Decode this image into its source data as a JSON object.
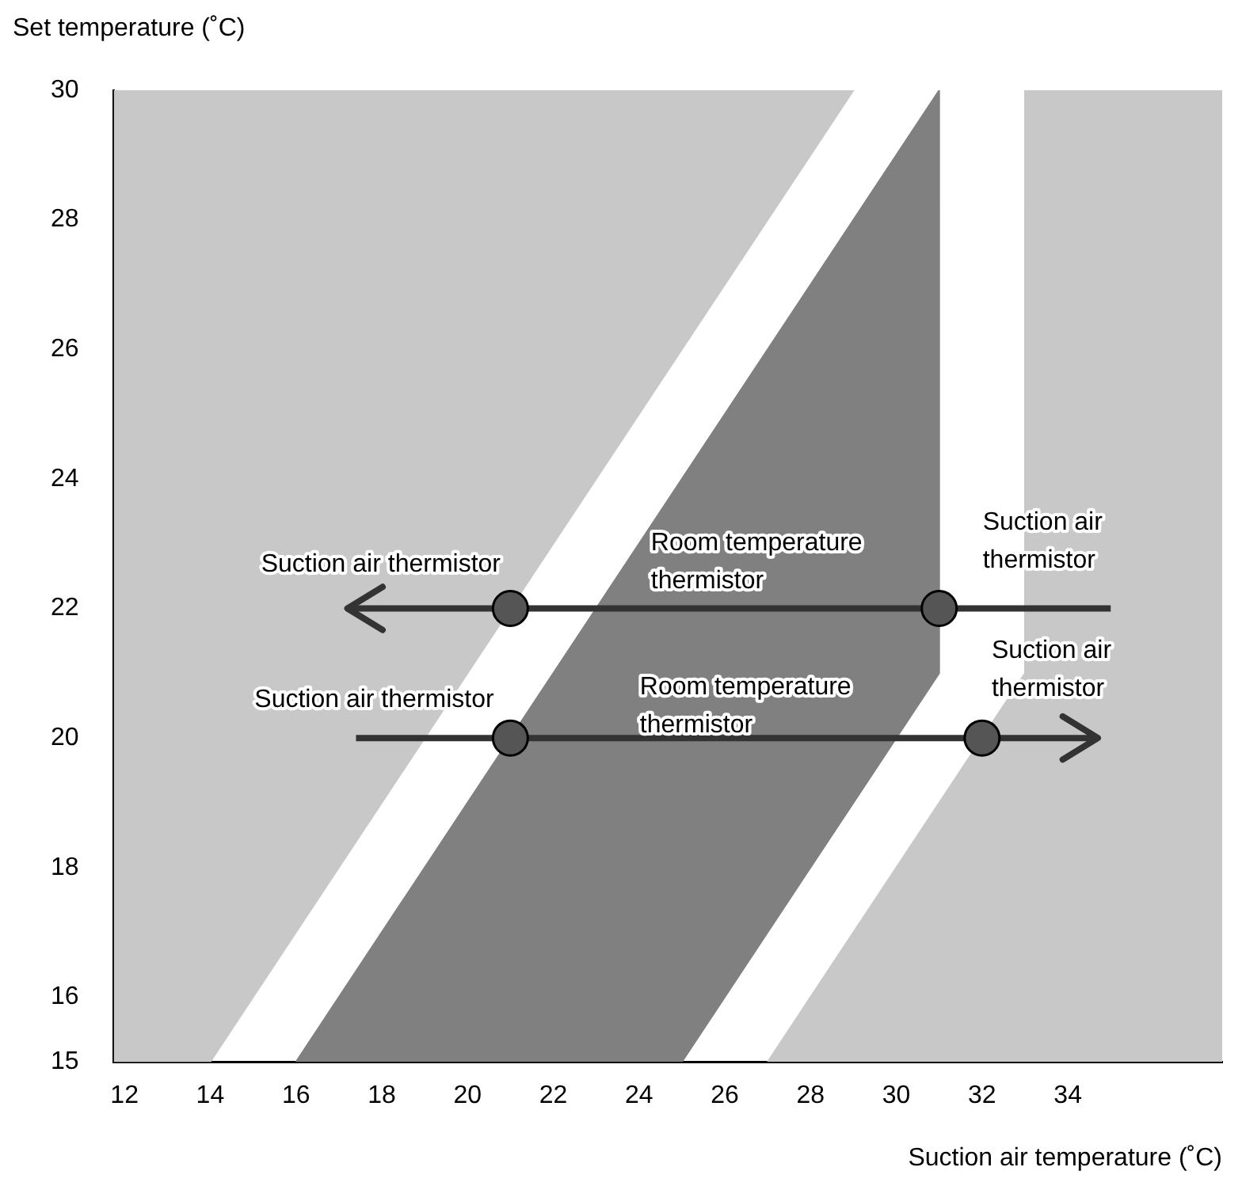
{
  "chart_data": {
    "type": "area",
    "xlabel": "Suction air temperature (˚C)",
    "ylabel": "Set temperature (˚C)",
    "xlim": [
      11.75,
      37.6
    ],
    "ylim": [
      15,
      30
    ],
    "xticks": [
      12,
      14,
      16,
      18,
      20,
      22,
      24,
      26,
      28,
      30,
      32,
      34
    ],
    "yticks": [
      15,
      16,
      18,
      20,
      22,
      24,
      26,
      28,
      30
    ],
    "grid": false,
    "legend": false,
    "series": [
      {
        "type": "area",
        "color": "#c8c8c8",
        "x": [
          11.75,
          14,
          29,
          11.75
        ],
        "values": [
          15,
          15,
          30,
          30
        ]
      },
      {
        "type": "area",
        "color": "#c8c8c8",
        "x": [
          27,
          33,
          33,
          37.6,
          37.6
        ],
        "values": [
          15,
          21,
          30,
          30,
          15
        ]
      },
      {
        "type": "area",
        "color": "#808080",
        "x": [
          16,
          31,
          31,
          25
        ],
        "values": [
          15,
          30,
          21,
          15
        ]
      },
      {
        "type": "line",
        "color": "#333333",
        "marker": "none",
        "x": [
          35,
          17.2
        ],
        "values": [
          22,
          22
        ]
      },
      {
        "type": "line",
        "color": "#333333",
        "marker": "none",
        "x": [
          17.4,
          34.7
        ],
        "values": [
          20,
          20
        ]
      },
      {
        "type": "scatter",
        "color": "#555555",
        "marker": "circle",
        "x": [
          21,
          31,
          21,
          32
        ],
        "values": [
          22,
          22,
          20,
          20
        ]
      }
    ],
    "annotations": [
      "Suction air thermistor",
      "Room temperature\nthermistor",
      "Suction air\nthermistor",
      "Suction air thermistor",
      "Room temperature\nthermistor",
      "Suction air\nthermistor"
    ]
  }
}
